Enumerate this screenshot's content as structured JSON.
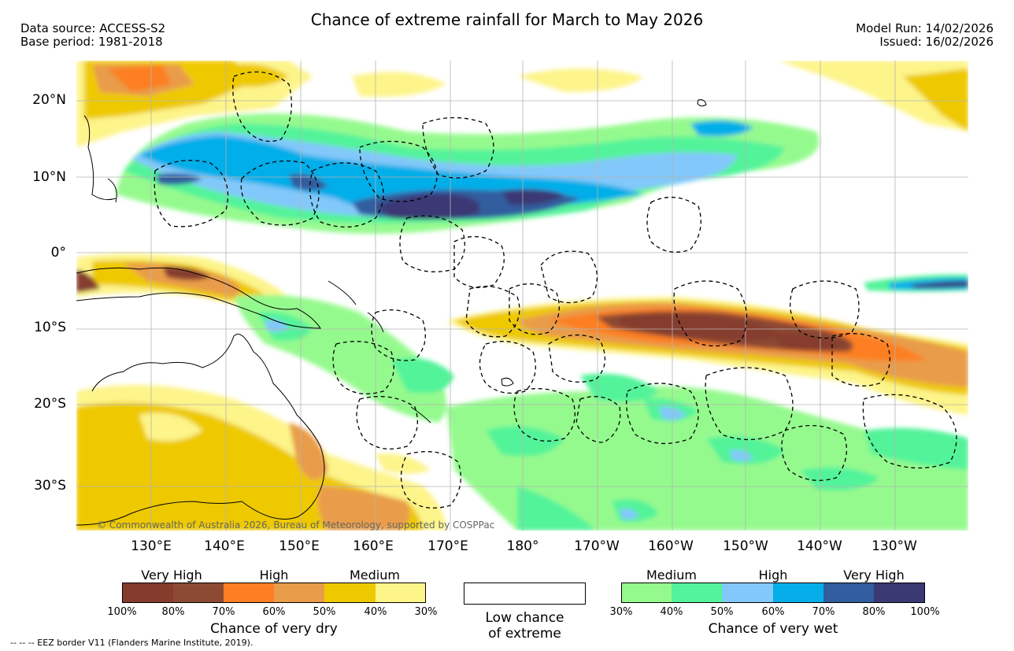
{
  "header": {
    "title": "Chance of extreme rainfall for March to May 2026",
    "data_source": "Data source: ACCESS-S2",
    "base_period": "Base period: 1981-2018",
    "model_run": "Model Run: 14/02/2026",
    "issued": "Issued: 16/02/2026"
  },
  "map": {
    "lat_labels": [
      "20°N",
      "10°N",
      "0°",
      "10°S",
      "20°S",
      "30°S"
    ],
    "lon_labels": [
      "130°E",
      "140°E",
      "150°E",
      "160°E",
      "170°E",
      "180°",
      "170°W",
      "160°W",
      "150°W",
      "140°W",
      "130°W"
    ],
    "copyright": "© Commonwealth of Australia 2026, Bureau of Meteorology, supported by COSPPac"
  },
  "legend": {
    "dry": {
      "headings": [
        "Very High",
        "High",
        "Medium"
      ],
      "colors": [
        "#863c2d",
        "#8c4a33",
        "#fd7f23",
        "#e99c4a",
        "#eec900",
        "#fdf48a"
      ],
      "ticks": [
        "100%",
        "80%",
        "70%",
        "60%",
        "50%",
        "40%",
        "30%"
      ],
      "title": "Chance of very dry"
    },
    "low": {
      "line1": "Low chance",
      "line2": "of extreme"
    },
    "wet": {
      "headings": [
        "Medium",
        "High",
        "Very High"
      ],
      "colors": [
        "#95fa8e",
        "#52f39a",
        "#82c8fa",
        "#05aee9",
        "#325d9e",
        "#3a3974"
      ],
      "ticks": [
        "30%",
        "40%",
        "50%",
        "60%",
        "70%",
        "80%",
        "100%"
      ],
      "title": "Chance of very wet"
    }
  },
  "footer": {
    "eez_note": "--  --  -- EEZ border V11 (Flanders Marine Institute, 2019)."
  }
}
